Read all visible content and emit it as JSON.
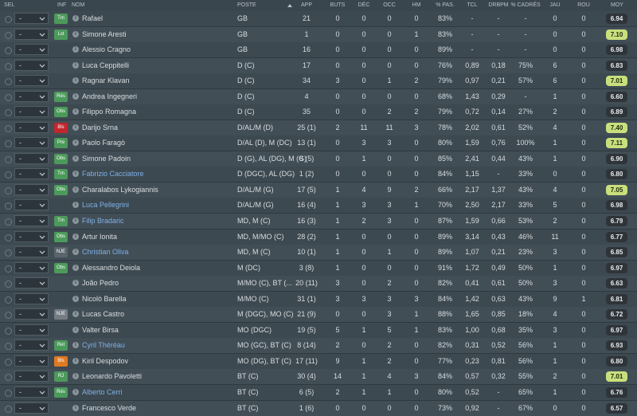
{
  "table": {
    "columns": [
      "SEL",
      "INF",
      "NOM",
      "POSTE",
      "APP",
      "BUTS",
      "DÉC",
      "OCC",
      "HM",
      "% PAS.",
      "TCL",
      "DRBPM",
      "% CADRÉS",
      "JAU",
      "ROU",
      "MOY"
    ],
    "rows": [
      {
        "sel": "-",
        "tag": "Tm",
        "tag_color": "#4c9a5b",
        "name": "Rafael",
        "name_color": "#d8dde0",
        "values": [
          "GB",
          "21",
          "0",
          "0",
          "0",
          "0",
          "83%",
          "-",
          "-",
          "-",
          "0",
          "0"
        ],
        "moy": "6.94",
        "moy_color": "#2f3439"
      },
      {
        "sel": "-",
        "tag": "Lst",
        "tag_color": "#4c9a5b",
        "name": "Simone Aresti",
        "name_color": "#d8dde0",
        "values": [
          "GB",
          "1",
          "0",
          "0",
          "0",
          "1",
          "83%",
          "-",
          "-",
          "-",
          "0",
          "0"
        ],
        "moy": "7.10",
        "moy_color": "#c9df7d"
      },
      {
        "sel": "-",
        "name": "Alessio Cragno",
        "name_color": "#d8dde0",
        "values": [
          "GB",
          "16",
          "0",
          "0",
          "0",
          "0",
          "89%",
          "-",
          "-",
          "-",
          "0",
          "0"
        ],
        "moy": "6.98",
        "moy_color": "#2f3439"
      },
      {
        "sel": "-",
        "name": "Luca Ceppitelli",
        "name_color": "#d8dde0",
        "values": [
          "D (C)",
          "17",
          "0",
          "0",
          "0",
          "0",
          "76%",
          "0,89",
          "0,18",
          "75%",
          "6",
          "0"
        ],
        "moy": "6.83",
        "moy_color": "#2f3439"
      },
      {
        "sel": "-",
        "name": "Ragnar Klavan",
        "name_color": "#d8dde0",
        "values": [
          "D (C)",
          "34",
          "3",
          "0",
          "1",
          "2",
          "79%",
          "0,97",
          "0,21",
          "57%",
          "6",
          "0"
        ],
        "moy": "7.01",
        "moy_color": "#c9df7d"
      },
      {
        "sel": "-",
        "tag": "Rés",
        "tag_color": "#4c9a5b",
        "name": "Andrea Ingegneri",
        "name_color": "#d8dde0",
        "values": [
          "D (C)",
          "4",
          "0",
          "0",
          "0",
          "0",
          "68%",
          "1,43",
          "0,29",
          "-",
          "1",
          "0"
        ],
        "moy": "6.60",
        "moy_color": "#2f3439"
      },
      {
        "sel": "-",
        "tag": "Obs",
        "tag_color": "#4c9a5b",
        "name": "Filippo Romagna",
        "name_color": "#d8dde0",
        "values": [
          "D (C)",
          "35",
          "0",
          "0",
          "2",
          "2",
          "79%",
          "0,72",
          "0,14",
          "27%",
          "2",
          "0"
        ],
        "moy": "6.89",
        "moy_color": "#2f3439"
      },
      {
        "sel": "-",
        "tag": "Bls",
        "tag_color": "#c1272d",
        "name": "Darijo Srna",
        "name_color": "#d8dde0",
        "values": [
          "D/AL/M (D)",
          "25 (1)",
          "2",
          "11",
          "11",
          "3",
          "78%",
          "2,02",
          "0,61",
          "52%",
          "4",
          "0"
        ],
        "moy": "7.40",
        "moy_color": "#c9df7d"
      },
      {
        "sel": "-",
        "tag": "Pre",
        "tag_color": "#4c9a5b",
        "name": "Paolo Faragò",
        "name_color": "#d8dde0",
        "values": [
          "D/AL (D), M (DC)",
          "13 (1)",
          "0",
          "3",
          "3",
          "0",
          "80%",
          "1,59",
          "0,76",
          "100%",
          "1",
          "0"
        ],
        "moy": "7.11",
        "moy_color": "#c9df7d"
      },
      {
        "sel": "-",
        "tag": "Obs",
        "tag_color": "#4c9a5b",
        "name": "Simone Padoin",
        "name_color": "#d8dde0",
        "values": [
          "D (G), AL (DG), M (G)",
          "8 (5)",
          "0",
          "1",
          "0",
          "0",
          "85%",
          "2,41",
          "0,44",
          "43%",
          "1",
          "0"
        ],
        "moy": "6.90",
        "moy_color": "#2f3439"
      },
      {
        "sel": "-",
        "tag": "Tm",
        "tag_color": "#4c9a5b",
        "name": "Fabrizio Cacciatore",
        "name_color": "#7fb0e8",
        "values": [
          "D (DGC), AL (DG)",
          "1 (2)",
          "0",
          "0",
          "0",
          "0",
          "84%",
          "1,15",
          "-",
          "33%",
          "0",
          "0"
        ],
        "moy": "6.80",
        "moy_color": "#2f3439"
      },
      {
        "sel": "-",
        "tag": "Obs",
        "tag_color": "#4c9a5b",
        "name": "Charalabos Lykogiannis",
        "name_color": "#d8dde0",
        "values": [
          "D/AL/M (G)",
          "17 (5)",
          "1",
          "4",
          "9",
          "2",
          "66%",
          "2,17",
          "1,37",
          "43%",
          "4",
          "0"
        ],
        "moy": "7.05",
        "moy_color": "#c9df7d"
      },
      {
        "sel": "-",
        "name": "Luca Pellegrini",
        "name_color": "#7fb0e8",
        "values": [
          "D/AL/M (G)",
          "16 (4)",
          "1",
          "3",
          "3",
          "1",
          "70%",
          "2,50",
          "2,17",
          "33%",
          "5",
          "0"
        ],
        "moy": "6.98",
        "moy_color": "#2f3439"
      },
      {
        "sel": "-",
        "tag": "Tm",
        "tag_color": "#4c9a5b",
        "name": "Filip Bradaric",
        "name_color": "#7fb0e8",
        "values": [
          "MD, M (C)",
          "16 (3)",
          "1",
          "2",
          "3",
          "0",
          "87%",
          "1,59",
          "0,66",
          "53%",
          "2",
          "0"
        ],
        "moy": "6.79",
        "moy_color": "#2f3439"
      },
      {
        "sel": "-",
        "tag": "Obs",
        "tag_color": "#4c9a5b",
        "name": "Artur Ionita",
        "name_color": "#d8dde0",
        "values": [
          "MD, M/MO (C)",
          "28 (2)",
          "1",
          "0",
          "0",
          "0",
          "89%",
          "3,14",
          "0,43",
          "46%",
          "11",
          "0"
        ],
        "moy": "6.77",
        "moy_color": "#2f3439"
      },
      {
        "sel": "-",
        "tag": "NJE",
        "tag_color": "#5a646c",
        "name": "Christian Oliva",
        "name_color": "#7fb0e8",
        "values": [
          "MD, M (C)",
          "10 (1)",
          "1",
          "0",
          "1",
          "0",
          "89%",
          "1,07",
          "0,21",
          "23%",
          "3",
          "0"
        ],
        "moy": "6.85",
        "moy_color": "#2f3439"
      },
      {
        "sel": "-",
        "tag": "Obs",
        "tag_color": "#4c9a5b",
        "name": "Alessandro Deiola",
        "name_color": "#d8dde0",
        "values": [
          "M (DC)",
          "3 (8)",
          "1",
          "0",
          "0",
          "0",
          "91%",
          "1,72",
          "0,49",
          "50%",
          "1",
          "0"
        ],
        "moy": "6.97",
        "moy_color": "#2f3439"
      },
      {
        "sel": "-",
        "name": "João Pedro",
        "name_color": "#d8dde0",
        "values": [
          "M/MO (C), BT (...",
          "20 (11)",
          "3",
          "0",
          "2",
          "0",
          "82%",
          "0,41",
          "0,61",
          "50%",
          "3",
          "0"
        ],
        "moy": "6.63",
        "moy_color": "#2f3439"
      },
      {
        "sel": "-",
        "name": "Nicolò Barella",
        "name_color": "#d8dde0",
        "values": [
          "M/MO (C)",
          "31 (1)",
          "3",
          "3",
          "3",
          "3",
          "84%",
          "1,42",
          "0,63",
          "43%",
          "9",
          "1"
        ],
        "moy": "6.81",
        "moy_color": "#2f3439"
      },
      {
        "sel": "-",
        "tag": "NJE",
        "tag_color": "#757c84",
        "name": "Lucas Castro",
        "name_color": "#d8dde0",
        "values": [
          "M (DGC), MO (C)",
          "21 (9)",
          "0",
          "0",
          "3",
          "1",
          "88%",
          "1,65",
          "0,85",
          "18%",
          "4",
          "0"
        ],
        "moy": "6.72",
        "moy_color": "#2f3439"
      },
      {
        "sel": "-",
        "name": "Valter Birsa",
        "name_color": "#d8dde0",
        "values": [
          "MO (DGC)",
          "19 (5)",
          "5",
          "1",
          "5",
          "1",
          "83%",
          "1,00",
          "0,68",
          "35%",
          "3",
          "0"
        ],
        "moy": "6.97",
        "moy_color": "#2f3439"
      },
      {
        "sel": "-",
        "tag": "Ret",
        "tag_color": "#4c9a5b",
        "name": "Cyril Théréau",
        "name_color": "#7fb0e8",
        "values": [
          "MO (GC), BT (C)",
          "8 (14)",
          "2",
          "0",
          "2",
          "0",
          "82%",
          "0,31",
          "0,52",
          "56%",
          "1",
          "0"
        ],
        "moy": "6.93",
        "moy_color": "#2f3439"
      },
      {
        "sel": "-",
        "tag": "Bls",
        "tag_color": "#e07a22",
        "name": "Kiril Despodov",
        "name_color": "#d8dde0",
        "values": [
          "MO (DG), BT (C)",
          "17 (11)",
          "9",
          "1",
          "2",
          "0",
          "77%",
          "0,23",
          "0,81",
          "56%",
          "1",
          "0"
        ],
        "moy": "6.80",
        "moy_color": "#2f3439"
      },
      {
        "sel": "-",
        "tag": "RJ",
        "tag_color": "#4c9a5b",
        "name": "Leonardo Pavoletti",
        "name_color": "#d8dde0",
        "values": [
          "BT (C)",
          "30 (4)",
          "14",
          "1",
          "4",
          "3",
          "84%",
          "0,57",
          "0,32",
          "55%",
          "2",
          "0"
        ],
        "moy": "7.01",
        "moy_color": "#c9df7d"
      },
      {
        "sel": "-",
        "tag": "Rés",
        "tag_color": "#4c9a5b",
        "name": "Alberto Cerri",
        "name_color": "#7fb0e8",
        "values": [
          "BT (C)",
          "6 (5)",
          "2",
          "1",
          "1",
          "0",
          "80%",
          "0,52",
          "-",
          "65%",
          "1",
          "0"
        ],
        "moy": "6.76",
        "moy_color": "#2f3439"
      },
      {
        "sel": "-",
        "name": "Francesco Verde",
        "name_color": "#d8dde0",
        "values": [
          "BT (C)",
          "1 (6)",
          "0",
          "0",
          "0",
          "0",
          "73%",
          "0,92",
          "-",
          "67%",
          "0",
          "0"
        ],
        "moy": "6.57",
        "moy_color": "#2f3439"
      }
    ]
  }
}
